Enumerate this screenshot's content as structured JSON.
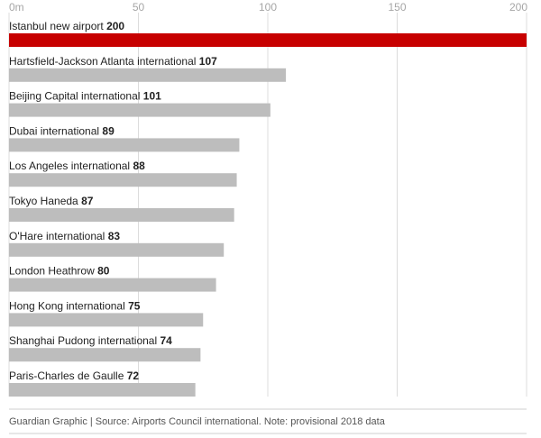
{
  "chart_data": {
    "type": "bar",
    "orientation": "horizontal",
    "xlim": [
      0,
      200
    ],
    "ticks": [
      {
        "value": 0,
        "label": "0m"
      },
      {
        "value": 50,
        "label": "50"
      },
      {
        "value": 100,
        "label": "100"
      },
      {
        "value": 150,
        "label": "150"
      },
      {
        "value": 200,
        "label": "200"
      }
    ],
    "categories": [
      "Istanbul new airport",
      "Hartsfield-Jackson Atlanta international",
      "Beijing Capital international",
      "Dubai international",
      "Los Angeles international",
      "Tokyo Haneda",
      "O'Hare international",
      "London Heathrow",
      "Hong Kong international",
      "Shanghai Pudong international",
      "Paris-Charles de Gaulle"
    ],
    "values": [
      200,
      107,
      101,
      89,
      88,
      87,
      83,
      80,
      75,
      74,
      72
    ],
    "highlight_index": 0,
    "colors": {
      "highlight": "#c70000",
      "bar": "#bdbdbd",
      "grid": "#dcdcdc"
    },
    "grid": true,
    "value_labels": true
  },
  "footer": {
    "source": "Guardian Graphic | Source: Airports Council international. Note: provisional 2018 data"
  }
}
